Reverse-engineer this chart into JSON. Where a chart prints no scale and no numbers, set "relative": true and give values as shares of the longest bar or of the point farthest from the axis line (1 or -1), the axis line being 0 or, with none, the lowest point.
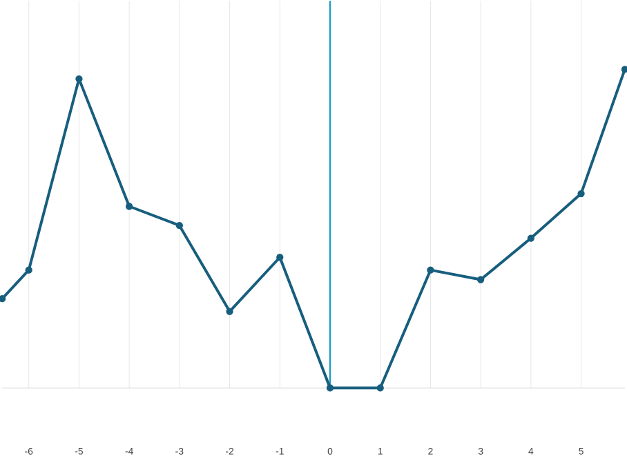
{
  "chart_data": {
    "type": "line",
    "relative": true,
    "x": [
      -6.53,
      -6,
      -5,
      -4,
      -3,
      -2,
      -1,
      0,
      1,
      2,
      3,
      4,
      5,
      5.87
    ],
    "series": [
      {
        "color": "#175e7e",
        "values": [
          0.28,
          0.37,
          0.97,
          0.57,
          0.51,
          0.24,
          0.41,
          0,
          0,
          0.37,
          0.34,
          0.47,
          0.61,
          1
        ]
      }
    ],
    "xlim": [
      -6.53,
      5.87
    ],
    "xticks": [
      -6,
      -5,
      -4,
      -3,
      -2,
      -1,
      0,
      1,
      2,
      3,
      4,
      5
    ],
    "tick_labels": "x",
    "grid": "x",
    "marker": "circle",
    "line_style": "solid",
    "ref_lines": [
      {
        "axis": "x",
        "value": 0,
        "color": "#1f9bc4"
      }
    ]
  }
}
